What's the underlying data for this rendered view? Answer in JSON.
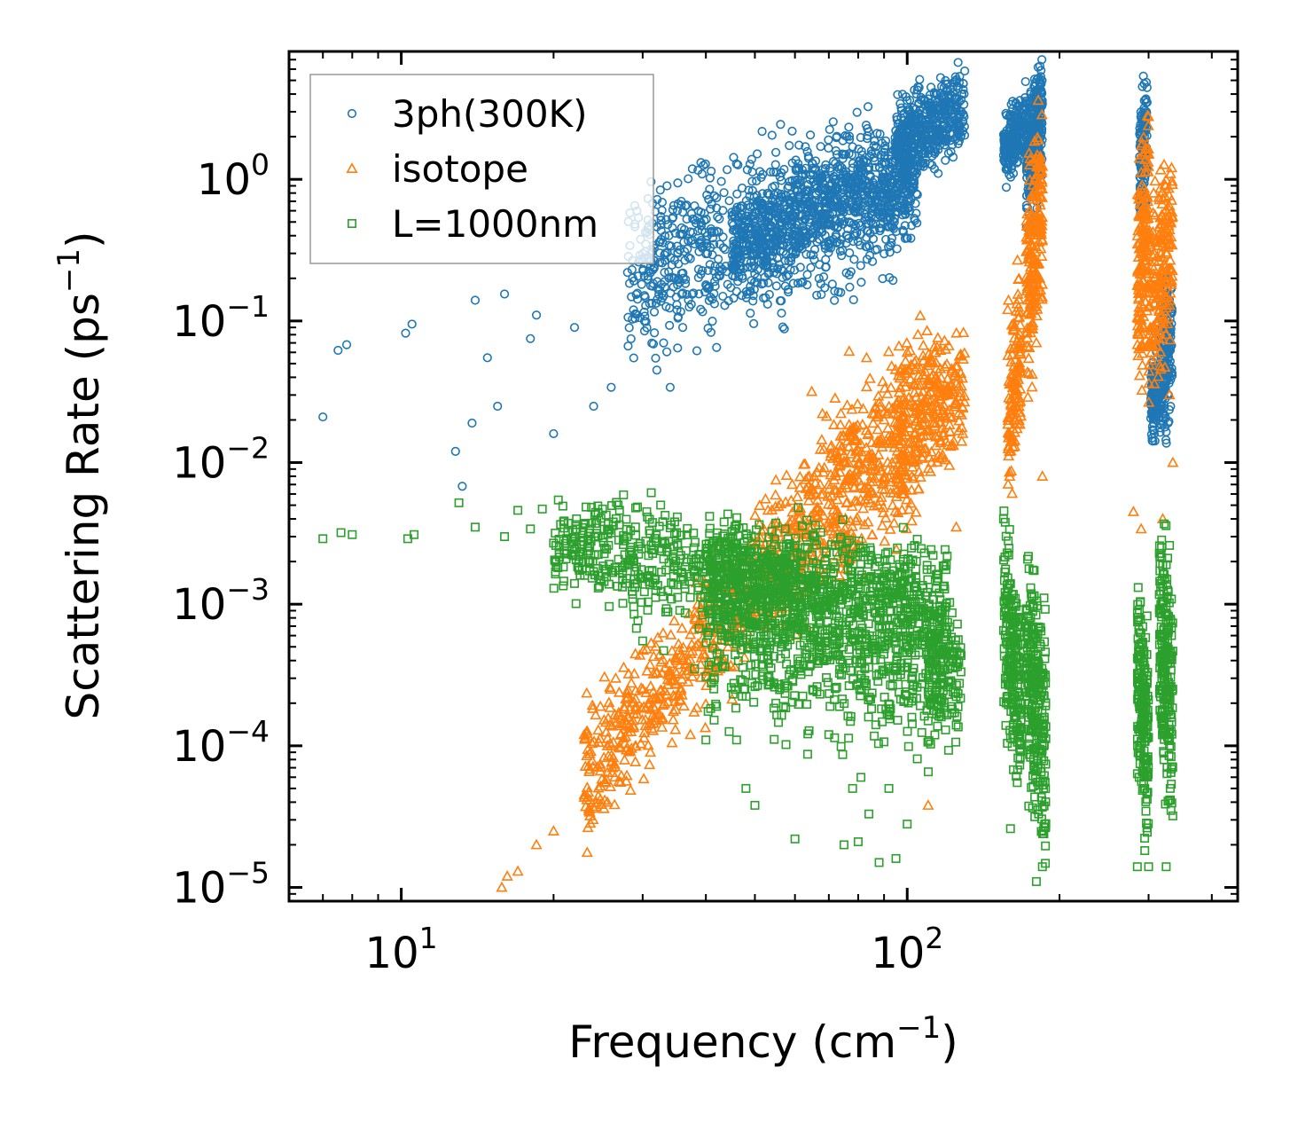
{
  "chart_data": {
    "type": "scatter",
    "xlabel": "Frequency (cm",
    "xlabel_sup": "−1",
    "xlabel_tail": ")",
    "ylabel": "Scattering Rate (ps",
    "ylabel_sup": "−1",
    "ylabel_tail": ")",
    "xscale": "log",
    "yscale": "log",
    "xlim": [
      6.0,
      450.0
    ],
    "ylim": [
      8e-06,
      8.0
    ],
    "x_ticks": [
      {
        "value": 10,
        "base": "10",
        "exp": "1"
      },
      {
        "value": 100,
        "base": "10",
        "exp": "2"
      }
    ],
    "y_ticks": [
      {
        "value": 1,
        "base": "10",
        "exp": "0"
      },
      {
        "value": 0.1,
        "base": "10",
        "exp": "−1"
      },
      {
        "value": 0.01,
        "base": "10",
        "exp": "−2"
      },
      {
        "value": 0.001,
        "base": "10",
        "exp": "−3"
      },
      {
        "value": 0.0001,
        "base": "10",
        "exp": "−4"
      },
      {
        "value": 1e-05,
        "base": "10",
        "exp": "−5"
      }
    ],
    "legend_position": "top-left",
    "series": [
      {
        "name": "3ph(300K)",
        "marker": "circle",
        "color": "#1f77b4",
        "anchors": [
          [
            7.0,
            0.021
          ],
          [
            7.5,
            0.062
          ],
          [
            7.8,
            0.068
          ],
          [
            10.2,
            0.082
          ],
          [
            10.5,
            0.095
          ],
          [
            12.8,
            0.012
          ],
          [
            13.2,
            0.0068
          ],
          [
            13.8,
            0.019
          ],
          [
            14.0,
            0.14
          ],
          [
            14.8,
            0.055
          ],
          [
            15.5,
            0.025
          ],
          [
            16.0,
            0.155
          ],
          [
            18.0,
            0.075
          ],
          [
            18.5,
            0.11
          ],
          [
            20.0,
            0.016
          ],
          [
            22.0,
            0.09
          ],
          [
            24.0,
            0.025
          ],
          [
            26.0,
            0.034
          ],
          [
            28.0,
            0.22
          ],
          [
            30.0,
            0.27
          ],
          [
            32.0,
            0.045
          ],
          [
            33.0,
            0.07
          ],
          [
            34.0,
            0.034
          ],
          [
            36.0,
            0.09
          ],
          [
            38.0,
            0.35
          ],
          [
            40.0,
            0.18
          ],
          [
            42.0,
            0.065
          ],
          [
            45.0,
            0.25
          ],
          [
            48.0,
            0.55
          ],
          [
            52.0,
            0.35
          ],
          [
            55.0,
            1.55
          ],
          [
            60.0,
            0.55
          ],
          [
            65.0,
            0.62
          ],
          [
            70.0,
            0.8
          ],
          [
            80.0,
            0.95
          ],
          [
            90.0,
            1.3
          ],
          [
            95.0,
            2.2
          ],
          [
            105.0,
            4.5
          ],
          [
            115.0,
            2.8
          ],
          [
            125.0,
            3.2
          ],
          [
            160.0,
            2.2
          ],
          [
            170.0,
            3.3
          ],
          [
            178.0,
            4.0
          ],
          [
            182.0,
            1.5
          ],
          [
            290.0,
            2.8
          ],
          [
            295.0,
            0.7
          ],
          [
            305.0,
            0.025
          ],
          [
            318.0,
            0.075
          ],
          [
            322.0,
            0.12
          ],
          [
            330.0,
            0.09
          ]
        ],
        "clusters": [
          {
            "x": [
              28,
              105
            ],
            "y0": [
              0.2,
              0.95
            ],
            "spread": 0.28,
            "n": 900
          },
          {
            "x": [
              45,
              105
            ],
            "y0": [
              0.35,
              1.2
            ],
            "spread": 0.18,
            "n": 700
          },
          {
            "x": [
              95,
              130
            ],
            "y0": [
              1.8,
              3.2
            ],
            "spread": 0.14,
            "n": 420
          },
          {
            "x": [
              155,
              172
            ],
            "y0": [
              1.6,
              2.6
            ],
            "spread": 0.12,
            "n": 200
          },
          {
            "x": [
              172,
              185
            ],
            "y0": [
              1.2,
              3.2
            ],
            "spread": 0.22,
            "n": 300
          },
          {
            "x": [
              288,
              298
            ],
            "y0": [
              1.0,
              2.2
            ],
            "spread": 0.22,
            "n": 150
          },
          {
            "x": [
              303,
              312
            ],
            "y0": [
              0.024,
              0.035
            ],
            "spread": 0.16,
            "n": 110
          },
          {
            "x": [
              316,
              334
            ],
            "y0": [
              0.035,
              0.09
            ],
            "spread": 0.24,
            "n": 180
          }
        ]
      },
      {
        "name": "isotope",
        "marker": "triangle",
        "color": "#ff7f0e",
        "anchors": [
          [
            15.8,
            1e-05
          ],
          [
            16.2,
            1.2e-05
          ],
          [
            17.0,
            1.3e-05
          ],
          [
            18.5,
            2e-05
          ],
          [
            20.0,
            2.5e-05
          ],
          [
            23.0,
            4.5e-05
          ],
          [
            26.0,
            0.0001
          ],
          [
            28.0,
            0.00016
          ],
          [
            30.0,
            0.00025
          ],
          [
            35.0,
            0.0004
          ],
          [
            40.0,
            0.00065
          ],
          [
            45.0,
            0.0012
          ],
          [
            52.0,
            0.0024
          ],
          [
            60.0,
            0.0038
          ],
          [
            70.0,
            0.007
          ],
          [
            80.0,
            0.012
          ],
          [
            90.0,
            0.02
          ],
          [
            100.0,
            0.06
          ],
          [
            105.0,
            0.08
          ],
          [
            110.0,
            3.8e-05
          ],
          [
            112.0,
            0.025
          ],
          [
            120.0,
            0.033
          ],
          [
            125.0,
            0.0035
          ],
          [
            158.0,
            0.12
          ],
          [
            162.0,
            0.014
          ],
          [
            165.0,
            0.04
          ],
          [
            175.0,
            1.4
          ],
          [
            180.0,
            0.07
          ],
          [
            185.0,
            0.008
          ],
          [
            280.0,
            0.0045
          ],
          [
            290.0,
            0.0034
          ],
          [
            300.0,
            1.5
          ],
          [
            315.0,
            0.12
          ],
          [
            320.0,
            0.004
          ],
          [
            330.0,
            0.03
          ],
          [
            335.0,
            0.01
          ]
        ],
        "clusters": [
          {
            "x": [
              23,
              60
            ],
            "y0": [
              6e-05,
              0.0028
            ],
            "spread": 0.22,
            "n": 550
          },
          {
            "x": [
              60,
              100
            ],
            "y0": [
              0.0028,
              0.02
            ],
            "spread": 0.32,
            "n": 450
          },
          {
            "x": [
              95,
              115
            ],
            "y0": [
              0.01,
              0.04
            ],
            "spread": 0.28,
            "n": 220
          },
          {
            "x": [
              115,
              130
            ],
            "y0": [
              0.025,
              0.035
            ],
            "spread": 0.2,
            "n": 100
          },
          {
            "x": [
              158,
              168
            ],
            "y0": [
              0.02,
              0.08
            ],
            "spread": 0.3,
            "n": 130
          },
          {
            "x": [
              172,
              185
            ],
            "y0": [
              0.15,
              0.6
            ],
            "spread": 0.35,
            "n": 220
          },
          {
            "x": [
              285,
              300
            ],
            "y0": [
              0.15,
              0.7
            ],
            "spread": 0.35,
            "n": 160
          },
          {
            "x": [
              300,
              335
            ],
            "y0": [
              0.12,
              0.4
            ],
            "spread": 0.32,
            "n": 200
          }
        ]
      },
      {
        "name": "L=1000nm",
        "marker": "square",
        "color": "#2ca02c",
        "anchors": [
          [
            7.0,
            0.0029
          ],
          [
            7.6,
            0.0032
          ],
          [
            8.0,
            0.0031
          ],
          [
            10.3,
            0.0029
          ],
          [
            10.6,
            0.0031
          ],
          [
            13.0,
            0.0052
          ],
          [
            14.0,
            0.0035
          ],
          [
            16.0,
            0.003
          ],
          [
            17.0,
            0.0046
          ],
          [
            18.0,
            0.0034
          ],
          [
            19.0,
            0.0047
          ],
          [
            20.0,
            0.0027
          ],
          [
            22.0,
            0.0014
          ],
          [
            24.0,
            0.0017
          ],
          [
            25.0,
            0.0047
          ],
          [
            27.0,
            0.0046
          ],
          [
            30.0,
            0.00055
          ],
          [
            33.0,
            0.00047
          ],
          [
            38.0,
            0.00035
          ],
          [
            40.0,
            0.00011
          ],
          [
            42.0,
            0.00019
          ],
          [
            46.0,
            0.00011
          ],
          [
            48.0,
            5e-05
          ],
          [
            50.0,
            3.8e-05
          ],
          [
            55.0,
            0.0002
          ],
          [
            60.0,
            2.2e-05
          ],
          [
            65.0,
            0.00025
          ],
          [
            70.0,
            0.00012
          ],
          [
            75.0,
            2e-05
          ],
          [
            78.0,
            5e-05
          ],
          [
            80.0,
            2.1e-05
          ],
          [
            84.0,
            3.3e-05
          ],
          [
            88.0,
            1.5e-05
          ],
          [
            92.0,
            5e-05
          ],
          [
            95.0,
            1.6e-05
          ],
          [
            100.0,
            2.8e-05
          ],
          [
            110.0,
            0.00015
          ],
          [
            125.0,
            0.00014
          ],
          [
            155.0,
            0.004
          ],
          [
            160.0,
            2.6e-05
          ],
          [
            165.0,
            5.5e-05
          ],
          [
            180.0,
            1.1e-05
          ],
          [
            185.0,
            1.4e-05
          ],
          [
            285.0,
            1.4e-05
          ],
          [
            300.0,
            1.4e-05
          ],
          [
            325.0,
            1.4e-05
          ],
          [
            330.0,
            0.0026
          ],
          [
            335.0,
            3.2e-05
          ]
        ],
        "clusters": [
          {
            "x": [
              20,
              60
            ],
            "y0": [
              0.0028,
              0.0013
            ],
            "spread": 0.18,
            "n": 500
          },
          {
            "x": [
              40,
              120
            ],
            "y0": [
              0.0015,
              0.0009
            ],
            "spread": 0.22,
            "n": 900
          },
          {
            "x": [
              40,
              115
            ],
            "y0": [
              0.0006,
              0.0003
            ],
            "spread": 0.3,
            "n": 450
          },
          {
            "x": [
              110,
              128
            ],
            "y0": [
              0.00045,
              0.0003
            ],
            "spread": 0.22,
            "n": 140
          },
          {
            "x": [
              155,
              168
            ],
            "y0": [
              0.0008,
              0.0002
            ],
            "spread": 0.32,
            "n": 220
          },
          {
            "x": [
              172,
              188
            ],
            "y0": [
              0.0004,
              0.0001
            ],
            "spread": 0.4,
            "n": 280
          },
          {
            "x": [
              285,
              300
            ],
            "y0": [
              0.0003,
              0.0001
            ],
            "spread": 0.35,
            "n": 200
          },
          {
            "x": [
              315,
              335
            ],
            "y0": [
              0.0006,
              0.0002
            ],
            "spread": 0.4,
            "n": 230
          }
        ]
      }
    ]
  }
}
